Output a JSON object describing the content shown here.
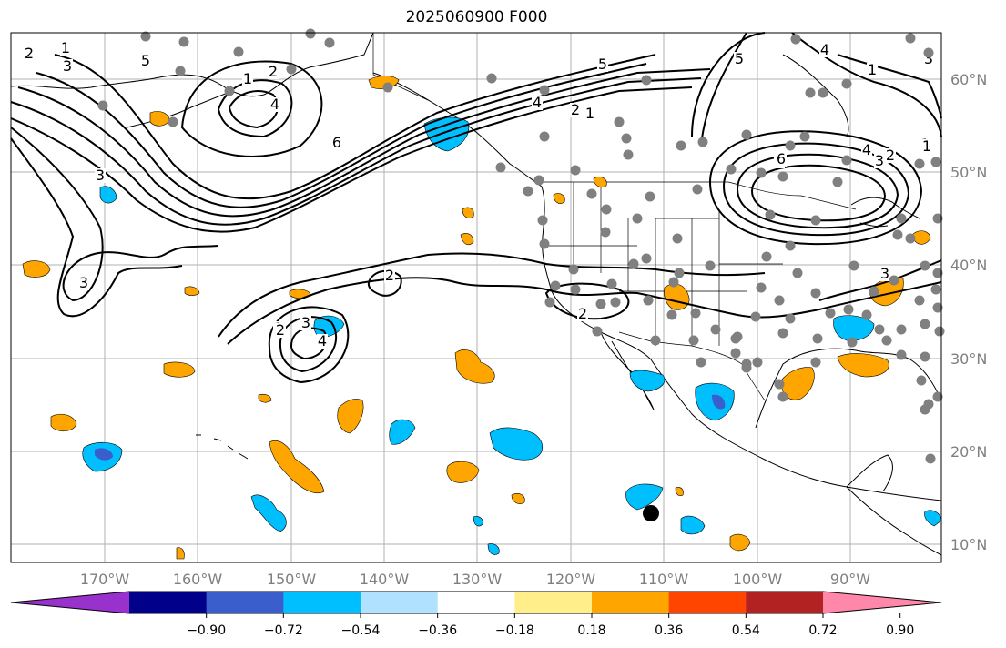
{
  "title": "2025060900 F000",
  "map": {
    "grid": true,
    "lat_ticks": [
      "60°N",
      "50°N",
      "40°N",
      "30°N",
      "20°N",
      "10°N"
    ],
    "lon_ticks": [
      "170°W",
      "160°W",
      "150°W",
      "140°W",
      "130°W",
      "120°W",
      "110°W",
      "100°W",
      "90°W"
    ],
    "contour_labels": [
      "1",
      "2",
      "3",
      "2",
      "1",
      "3",
      "4",
      "5",
      "6",
      "3",
      "2",
      "4",
      "6",
      "2",
      "1",
      "5",
      "4",
      "3",
      "6",
      "5",
      "4",
      "1",
      "3",
      "1",
      "2",
      "3",
      "2",
      "2",
      "3",
      "4",
      "2",
      "1"
    ],
    "station_color": "#808080",
    "marker_color": "#000000"
  },
  "colorbar": {
    "tick_labels": [
      "−0.90",
      "−0.72",
      "−0.54",
      "−0.36",
      "−0.18",
      "0.18",
      "0.36",
      "0.54",
      "0.72",
      "0.90"
    ],
    "colors": [
      "#9932cc",
      "#00008b",
      "#3a5fcd",
      "#00bfff",
      "#b0e2ff",
      "#ffffff",
      "#ffee8a",
      "#ffa500",
      "#ff4500",
      "#b22222",
      "#ff88aa"
    ],
    "extend": "both"
  }
}
